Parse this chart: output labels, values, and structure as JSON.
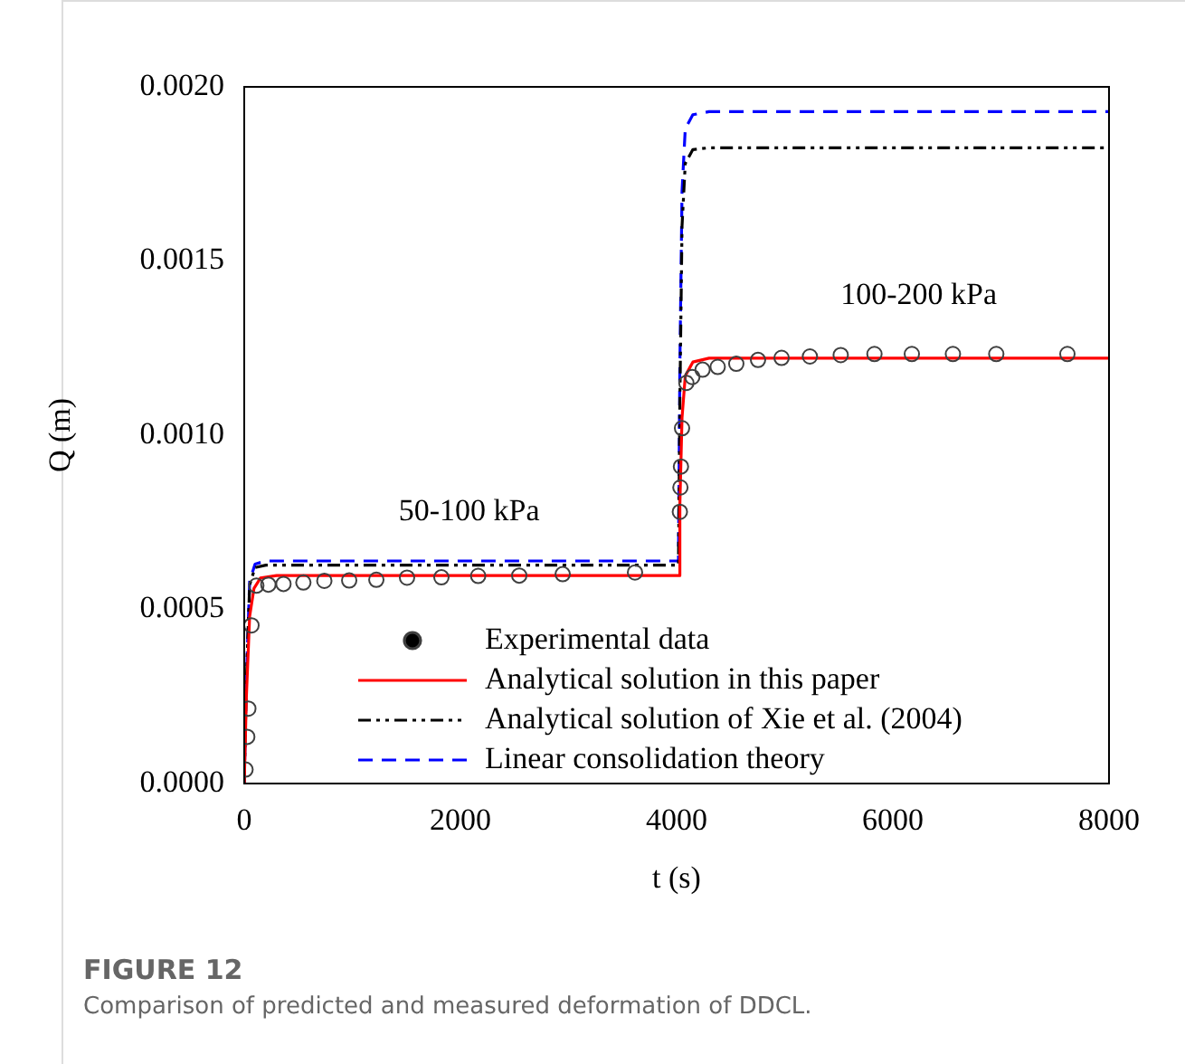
{
  "chart_data": {
    "type": "line",
    "title": "FIGURE 12",
    "subtitle": "Comparison of predicted and measured deformation of DDCL.",
    "xlabel": "t (s)",
    "ylabel": "Q (m)",
    "xlim": [
      0,
      8000
    ],
    "xticks": [
      0,
      2000,
      4000,
      6000,
      8000
    ],
    "ylim": [
      0,
      0.002
    ],
    "yticks": [
      {
        "value": 0,
        "label": "0.0000"
      },
      {
        "value": 0.0005,
        "label": "0.0005"
      },
      {
        "value": 0.001,
        "label": "0.0010"
      },
      {
        "value": 0.0015,
        "label": "0.0015"
      },
      {
        "value": 0.002,
        "label": "0.0020"
      }
    ],
    "grid": false,
    "legend": "bottom right",
    "annotations": [
      "50-100 kPa",
      "100-200 kPa"
    ],
    "series": [
      {
        "name": "Experimental data",
        "type": "scatter",
        "marker": "circle",
        "color": "#404040",
        "x": [
          12,
          28,
          38,
          67,
          112,
          223,
          363,
          547,
          741,
          971,
          1222,
          1506,
          1824,
          2164,
          2544,
          2946,
          3615,
          4030,
          4035,
          4040,
          4050,
          4090,
          4145,
          4240,
          4380,
          4552,
          4753,
          4971,
          5233,
          5518,
          5830,
          6176,
          6556,
          6957,
          7615
        ],
        "values": [
          4e-05,
          0.000134,
          0.000215,
          0.000454,
          0.000568,
          0.000571,
          0.000573,
          0.000577,
          0.000582,
          0.000583,
          0.000585,
          0.000591,
          0.000592,
          0.000596,
          0.000597,
          0.000601,
          0.000606,
          0.00078,
          0.00085,
          0.00091,
          0.00102,
          0.00115,
          0.001167,
          0.001188,
          0.001196,
          0.001205,
          0.001216,
          0.001222,
          0.001226,
          0.00123,
          0.001233,
          0.001233,
          0.001233,
          0.001233,
          0.001233
        ]
      },
      {
        "name": "Analytical solution in this paper",
        "line_style": "solid",
        "color": "#ff0000",
        "x": [
          0,
          20,
          50,
          90,
          150,
          300,
          4017,
          4030,
          4050,
          4080,
          4150,
          4300,
          8000
        ],
        "values": [
          0,
          0.00025,
          0.00048,
          0.00056,
          0.00059,
          0.000597,
          0.000597,
          0.0008,
          0.00105,
          0.00117,
          0.00121,
          0.001221,
          0.001221
        ]
      },
      {
        "name": "Analytical solution of Xie et al. (2004)",
        "line_style": "dashdotdot",
        "color": "#000000",
        "x": [
          0,
          20,
          50,
          100,
          200,
          4017,
          4030,
          4050,
          4080,
          4150,
          4300,
          8000
        ],
        "values": [
          0,
          0.0003,
          0.00057,
          0.00062,
          0.000627,
          0.000627,
          0.0011,
          0.0016,
          0.00178,
          0.00182,
          0.001825,
          0.001825
        ]
      },
      {
        "name": "Linear consolidation theory",
        "line_style": "dashed",
        "color": "#0000ff",
        "x": [
          0,
          20,
          50,
          100,
          200,
          4017,
          4030,
          4050,
          4080,
          4150,
          4300,
          8000
        ],
        "values": [
          0,
          0.0003,
          0.00058,
          0.00063,
          0.000639,
          0.000639,
          0.0012,
          0.0017,
          0.00188,
          0.00192,
          0.001929,
          0.001929
        ]
      }
    ]
  }
}
